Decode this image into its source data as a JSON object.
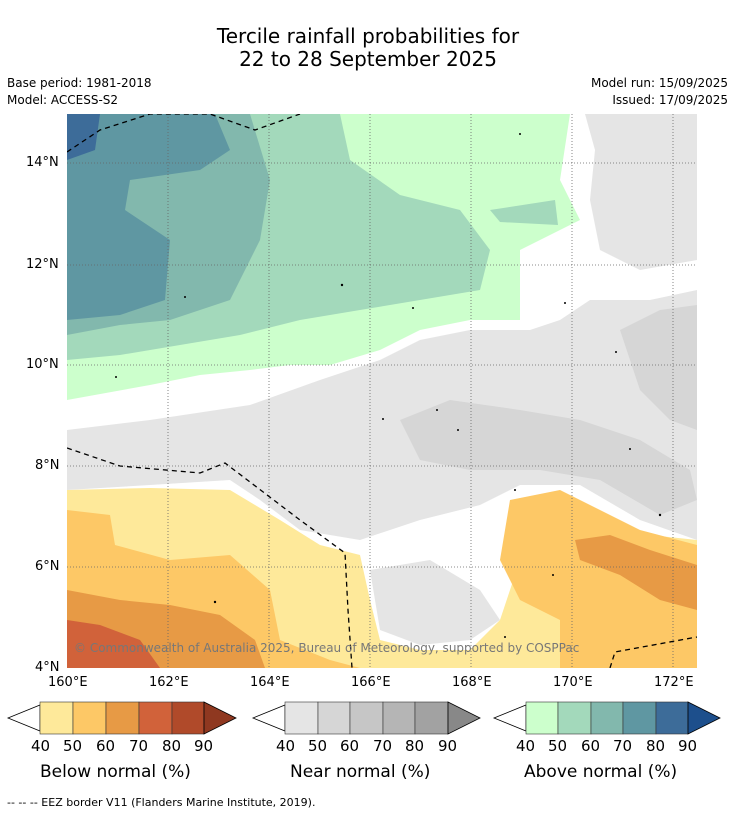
{
  "header": {
    "title_line1": "Tercile rainfall probabilities for",
    "title_line2": "22 to 28 September 2025",
    "base_period": "Base period: 1981-2018",
    "model": "Model: ACCESS-S2",
    "model_run": "Model run: 15/09/2025",
    "issued": "Issued: 17/09/2025"
  },
  "map": {
    "x_ticks": [
      "160°E",
      "162°E",
      "164°E",
      "166°E",
      "168°E",
      "170°E",
      "172°E"
    ],
    "y_ticks": [
      "14°N",
      "12°N",
      "10°N",
      "8°N",
      "6°N",
      "4°N"
    ],
    "copyright": "© Commonwealth of Australia 2025, Bureau of Meteorology, supported by COSPPac"
  },
  "legends": [
    {
      "label": "Below normal (%)",
      "ticks": [
        "40",
        "50",
        "60",
        "70",
        "80",
        "90"
      ],
      "colors": [
        "#fee99a",
        "#fdc866",
        "#e79a45",
        "#d1623a",
        "#b04a2a",
        "#8f3820"
      ]
    },
    {
      "label": "Near normal (%)",
      "ticks": [
        "40",
        "50",
        "60",
        "70",
        "80",
        "90"
      ],
      "colors": [
        "#e5e5e5",
        "#d6d6d6",
        "#c6c6c6",
        "#b5b5b5",
        "#a2a2a2",
        "#888888"
      ]
    },
    {
      "label": "Above normal (%)",
      "ticks": [
        "40",
        "50",
        "60",
        "70",
        "80",
        "90"
      ],
      "colors": [
        "#ccffcc",
        "#a3d9bb",
        "#82b8ad",
        "#5f97a2",
        "#3d6c99",
        "#1d4f8c"
      ]
    }
  ],
  "footer": "--  --  -- EEZ border V11 (Flanders Marine Institute, 2019)."
}
